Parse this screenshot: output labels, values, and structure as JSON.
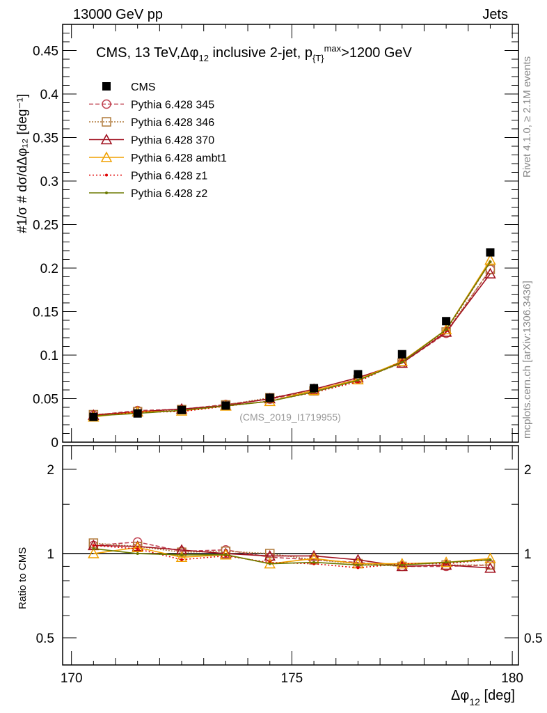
{
  "header": {
    "left": "13000 GeV pp",
    "right": "Jets"
  },
  "side_labels": {
    "rivet": "Rivet 4.1.0, ≥ 2.1M events",
    "mcplots": "mcplots.cern.ch [arXiv:1306.3436]"
  },
  "watermark": "(CMS_2019_I1719955)",
  "chart_data": [
    {
      "type": "line",
      "title": "CMS, 13 TeV,Δφ₁₂ inclusive 2-jet,  p{T}^max>1200 GeV",
      "xlabel": "Δφ₁₂ [deg]",
      "ylabel": "#1/σ # dσ/dΔφ₁₂ [deg⁻¹]",
      "xlim": [
        169.8,
        180.14
      ],
      "ylim": [
        0,
        0.48
      ],
      "yticks": [
        "0",
        "0.05",
        "0.1",
        "0.15",
        "0.2",
        "0.25",
        "0.3",
        "0.35",
        "0.4",
        "0.45"
      ],
      "legend_position": "top-left",
      "x": [
        170.5,
        171.5,
        172.5,
        173.5,
        174.5,
        175.5,
        176.5,
        177.5,
        178.5,
        179.5
      ],
      "series": [
        {
          "name": "CMS",
          "color": "#000000",
          "marker": "square",
          "values": [
            0.029,
            0.033,
            0.037,
            0.042,
            0.051,
            0.062,
            0.078,
            0.101,
            0.139,
            0.218
          ]
        },
        {
          "name": "Pythia 6.428 345",
          "color": "#c0404f",
          "dash": "6,3",
          "marker": "circle",
          "values": [
            0.031,
            0.0363,
            0.0377,
            0.0433,
            0.0495,
            0.0589,
            0.0725,
            0.0909,
            0.1251,
            0.1984
          ]
        },
        {
          "name": "Pythia 6.428 346",
          "color": "#b07a3a",
          "dash": "2,2",
          "marker": "opensquare",
          "values": [
            0.0316,
            0.035,
            0.0374,
            0.0428,
            0.051,
            0.0589,
            0.0718,
            0.0909,
            0.1265,
            0.1984
          ]
        },
        {
          "name": "Pythia 6.428 370",
          "color": "#a0101e",
          "dash": "",
          "marker": "triangle",
          "values": [
            0.031,
            0.035,
            0.0381,
            0.042,
            0.05,
            0.0608,
            0.0741,
            0.0909,
            0.1265,
            0.1935
          ]
        },
        {
          "name": "Pythia 6.428 ambt1",
          "color": "#f0a000",
          "dash": "",
          "marker": "triangle",
          "values": [
            0.029,
            0.0347,
            0.0359,
            0.0416,
            0.0469,
            0.0595,
            0.0718,
            0.0929,
            0.1293,
            0.2093
          ]
        },
        {
          "name": "Pythia 6.428 z1",
          "color": "#e00000",
          "dash": "2,3",
          "marker": "dot",
          "values": [
            0.031,
            0.0343,
            0.0352,
            0.0412,
            0.0474,
            0.057,
            0.0694,
            0.0929,
            0.1279,
            0.2071
          ]
        },
        {
          "name": "Pythia 6.428 z2",
          "color": "#6b7a00",
          "dash": "",
          "marker": "dot",
          "values": [
            0.0302,
            0.033,
            0.0366,
            0.0416,
            0.0469,
            0.0577,
            0.071,
            0.0919,
            0.1293,
            0.2071
          ]
        }
      ]
    },
    {
      "type": "line",
      "ylabel": "Ratio to CMS",
      "yscale": "log",
      "ylim": [
        0.4,
        2.43
      ],
      "yticks": [
        "0.5",
        "1",
        "2"
      ],
      "xticks": [
        "170",
        "175",
        "180"
      ],
      "xlabel": "Δφ₁₂ [deg]"
    }
  ]
}
